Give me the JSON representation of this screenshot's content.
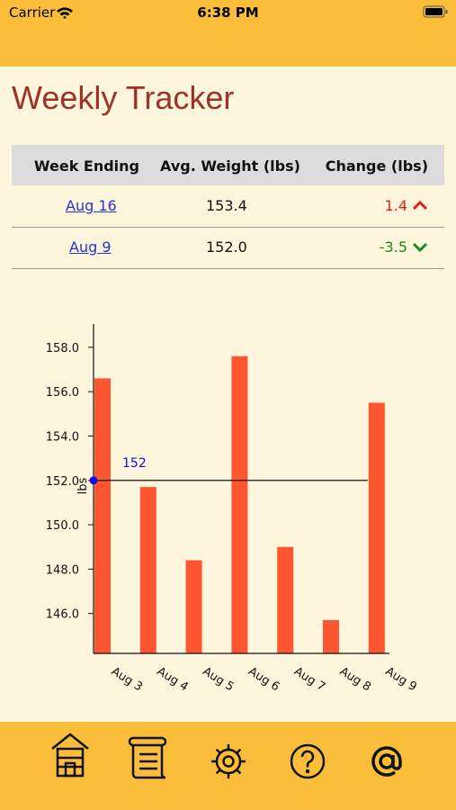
{
  "status_bar": {
    "carrier": "Carrier",
    "time": "6:38 PM"
  },
  "header": {
    "title": "Weekly Tracker"
  },
  "table": {
    "columns": [
      "Week Ending",
      "Avg. Weight (lbs)",
      "Change (lbs)"
    ],
    "rows": [
      [
        "Aug 16",
        "153.4",
        "1.4"
      ],
      [
        "Aug 9",
        "152.0",
        "-3.5"
      ]
    ]
  },
  "chart_data": {
    "type": "bar",
    "ylabel": "lbs",
    "categories": [
      "Aug 3",
      "Aug 4",
      "Aug 5",
      "Aug 6",
      "Aug 7",
      "Aug 8",
      "Aug 9"
    ],
    "values": [
      156.6,
      151.7,
      148.4,
      157.6,
      149.0,
      145.7,
      155.5
    ],
    "color": "#fe5631",
    "ylim": [
      144.2,
      159.05
    ],
    "yticks": [
      {
        "value": 146,
        "label": "146.0"
      },
      {
        "value": 148,
        "label": "148.0"
      },
      {
        "value": 150,
        "label": "150.0"
      },
      {
        "value": 152,
        "label": "152.0"
      },
      {
        "value": 154,
        "label": "154.0"
      },
      {
        "value": 156,
        "label": "156.0"
      },
      {
        "value": 158,
        "label": "158.0"
      }
    ],
    "average_line": {
      "value": 152,
      "color": "#1010e0"
    }
  }
}
